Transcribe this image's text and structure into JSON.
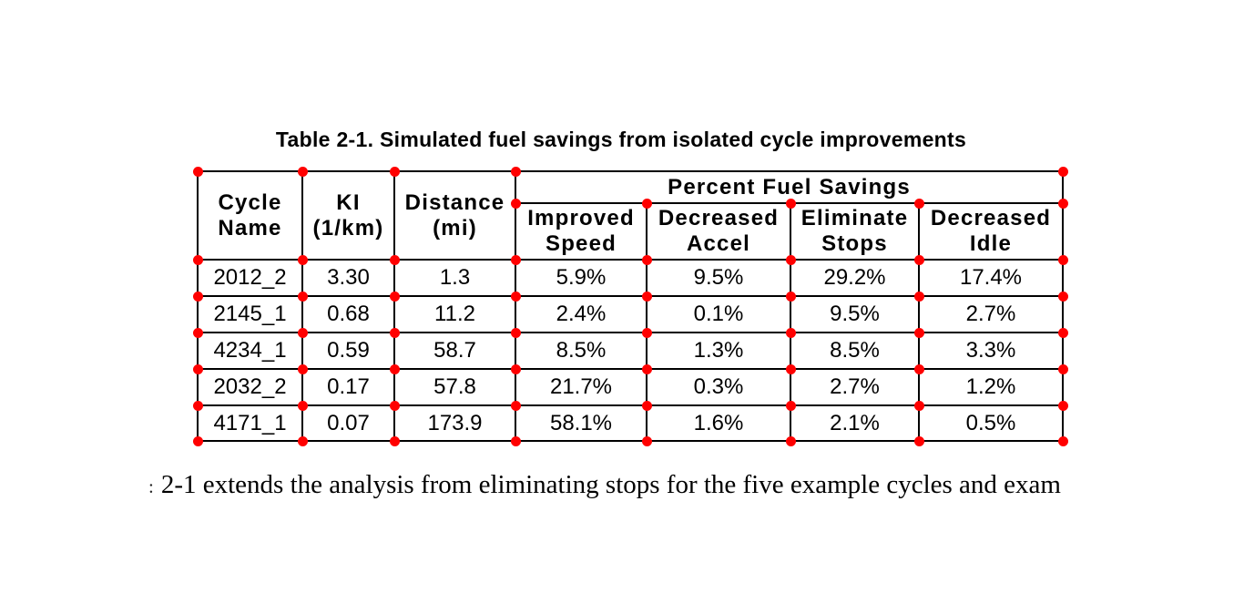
{
  "title": "Table 2-1. Simulated fuel savings from isolated cycle improvements",
  "table": {
    "merged_columns": [
      {
        "label": "Cycle\nName"
      },
      {
        "label": "KI\n(1/km)"
      },
      {
        "label": "Distance\n(mi)"
      }
    ],
    "group_header": "Percent Fuel Savings",
    "sub_columns": [
      {
        "label": "Improved\nSpeed"
      },
      {
        "label": "Decreased\nAccel"
      },
      {
        "label": "Eliminate\nStops"
      },
      {
        "label": "Decreased\nIdle"
      }
    ],
    "rows": [
      [
        "2012_2",
        "3.30",
        "1.3",
        "5.9%",
        "9.5%",
        "29.2%",
        "17.4%"
      ],
      [
        "2145_1",
        "0.68",
        "11.2",
        "2.4%",
        "0.1%",
        "9.5%",
        "2.7%"
      ],
      [
        "4234_1",
        "0.59",
        "58.7",
        "8.5%",
        "1.3%",
        "8.5%",
        "3.3%"
      ],
      [
        "2032_2",
        "0.17",
        "57.8",
        "21.7%",
        "0.3%",
        "2.7%",
        "1.2%"
      ],
      [
        "4171_1",
        "0.07",
        "173.9",
        "58.1%",
        "1.6%",
        "2.1%",
        "0.5%"
      ]
    ]
  },
  "markers": {
    "color": "#ff0000"
  },
  "body_text": {
    "leading_fragment": ":",
    "text": "2-1 extends the analysis from eliminating stops for the five example cycles and exam"
  }
}
